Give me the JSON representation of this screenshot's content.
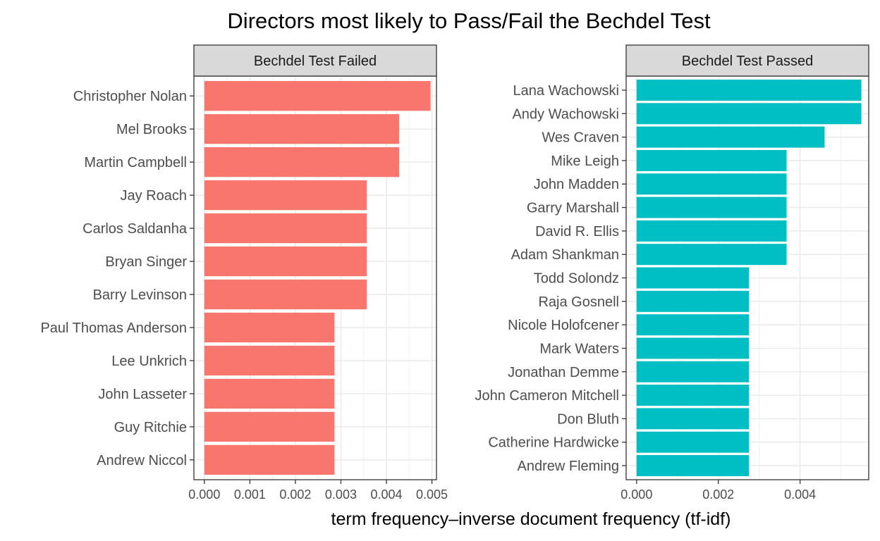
{
  "chart_data": {
    "type": "bar",
    "title": "Directors most likely to Pass/Fail the Bechdel Test",
    "xlabel": "term frequency–inverse document frequency (tf-idf)",
    "ylabel": "",
    "orientation": "horizontal",
    "grid": true,
    "legend": "none",
    "panels": [
      {
        "name": "Bechdel Test Failed",
        "color": "#F8766D",
        "xlim": [
          0,
          0.0051
        ],
        "xticks": [
          0,
          0.001,
          0.002,
          0.003,
          0.004,
          0.005
        ],
        "xtick_labels": [
          "0.000",
          "0.001",
          "0.002",
          "0.003",
          "0.004",
          "0.005"
        ],
        "categories": [
          "Christopher Nolan",
          "Mel Brooks",
          "Martin Campbell",
          "Jay Roach",
          "Carlos Saldanha",
          "Bryan Singer",
          "Barry Levinson",
          "Paul Thomas Anderson",
          "Lee Unkrich",
          "John Lasseter",
          "Guy Ritchie",
          "Andrew Niccol"
        ],
        "values": [
          0.00497,
          0.00428,
          0.00428,
          0.00357,
          0.00357,
          0.00357,
          0.00357,
          0.00286,
          0.00286,
          0.00286,
          0.00286,
          0.00286
        ]
      },
      {
        "name": "Bechdel Test Passed",
        "color": "#00BFC4",
        "xlim": [
          0,
          0.00568
        ],
        "xticks": [
          0,
          0.002,
          0.004
        ],
        "xtick_labels": [
          "0.000",
          "0.002",
          "0.004"
        ],
        "categories": [
          "Lana Wachowski",
          "Andy Wachowski",
          "Wes Craven",
          "Mike Leigh",
          "John Madden",
          "Garry Marshall",
          "David R. Ellis",
          "Adam Shankman",
          "Todd Solondz",
          "Raja Gosnell",
          "Nicole Holofcener",
          "Mark Waters",
          "Jonathan Demme",
          "John Cameron Mitchell",
          "Don Bluth",
          "Catherine Hardwicke",
          "Andrew Fleming"
        ],
        "values": [
          0.0055,
          0.0055,
          0.0046,
          0.00367,
          0.00367,
          0.00367,
          0.00367,
          0.00367,
          0.00275,
          0.00275,
          0.00275,
          0.00275,
          0.00275,
          0.00275,
          0.00275,
          0.00275,
          0.00275
        ]
      }
    ]
  }
}
